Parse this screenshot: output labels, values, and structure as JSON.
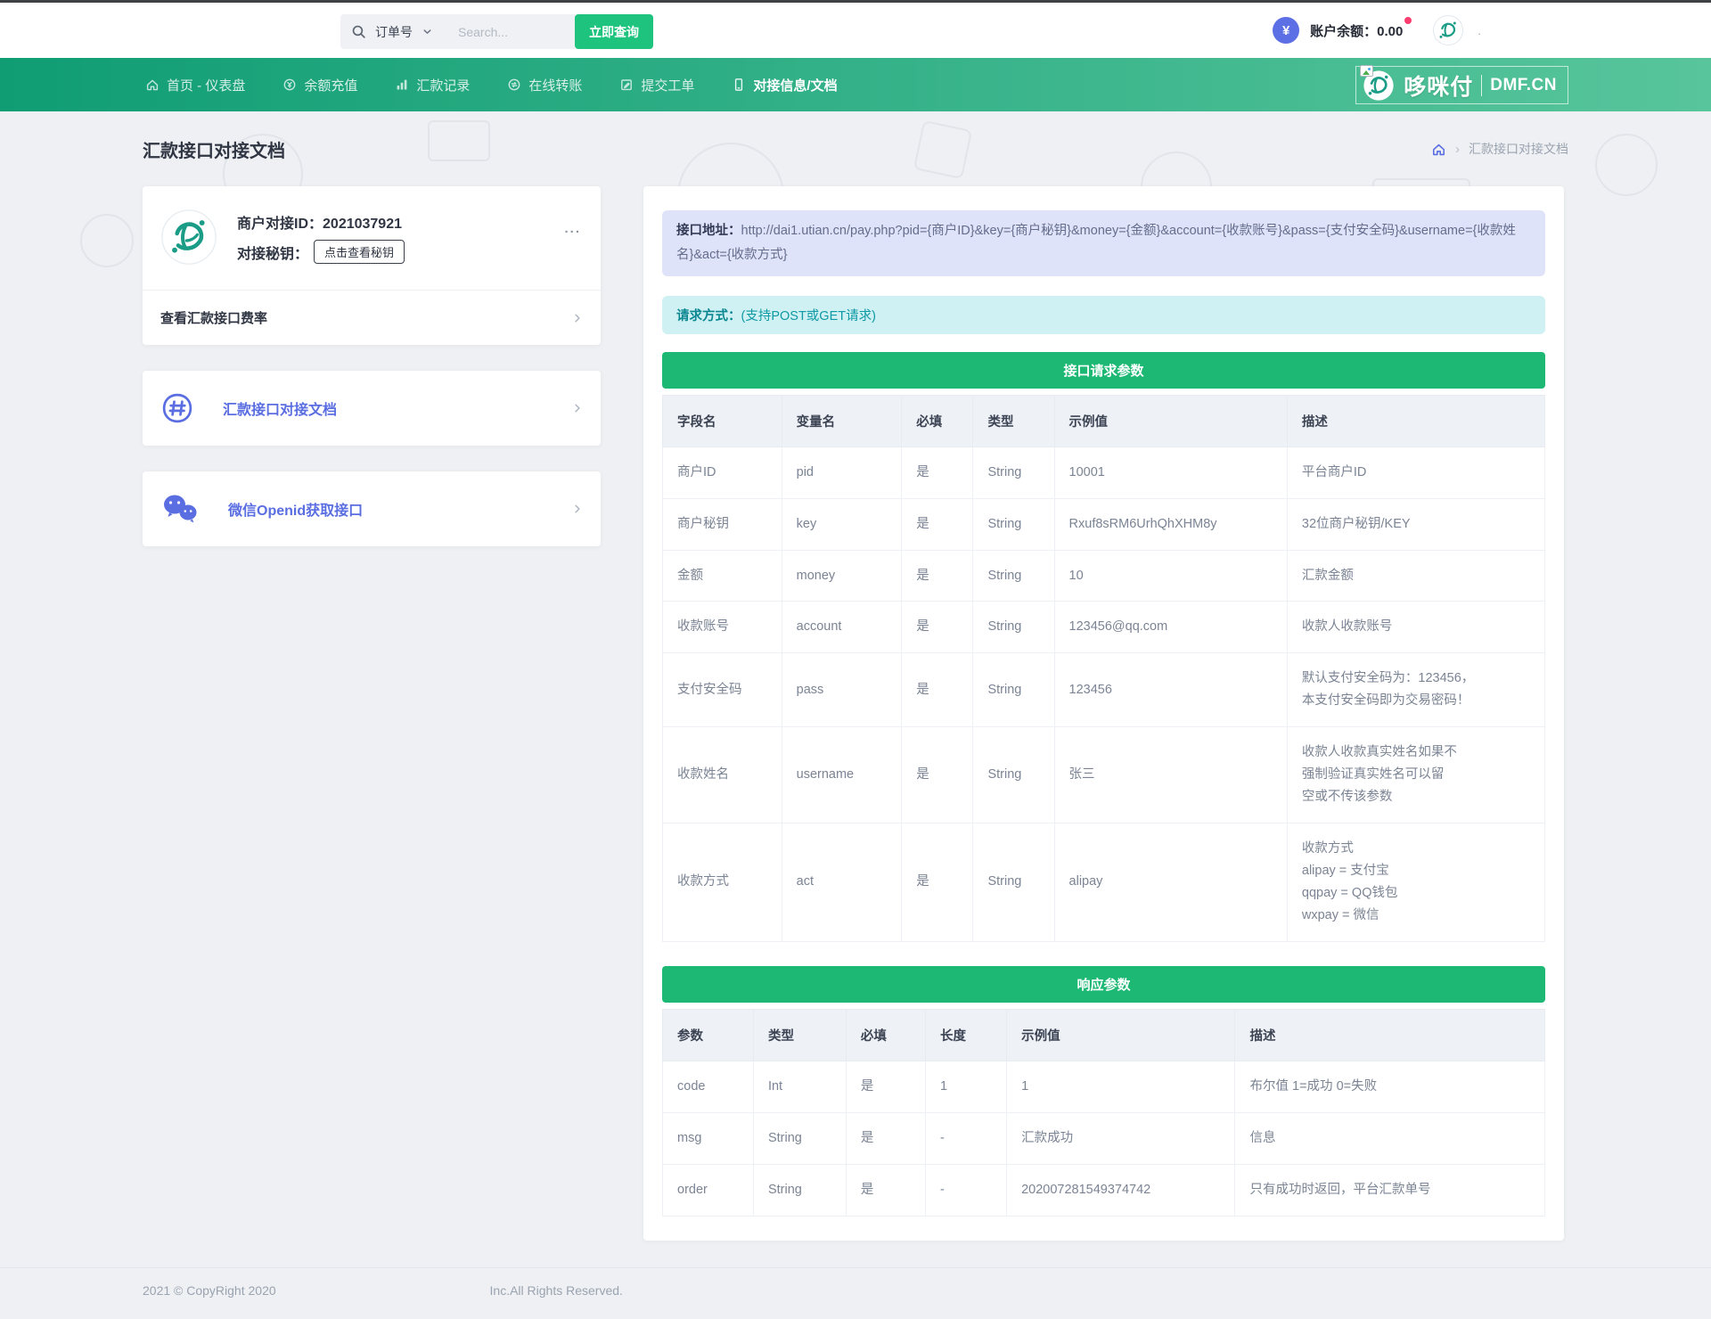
{
  "colors": {
    "accent_green": "#1db873",
    "button_green": "#1ec47d",
    "nav_gradient_start": "#109d74",
    "nav_gradient_end": "#58c59c",
    "link_blue": "#5a6ee1",
    "alert_purple_bg": "#dfe3f9",
    "alert_cyan_bg": "#cff1f3",
    "badge_blue": "#5c6fe4",
    "notif_red": "#fb3e6e"
  },
  "topbar": {
    "search": {
      "category": "订单号",
      "placeholder": "Search...",
      "button": "立即查询"
    },
    "currency_symbol": "¥",
    "balance_label": "账户余额：",
    "balance_value": "0.00"
  },
  "navbar": {
    "items": [
      {
        "label": "首页 - 仪表盘",
        "icon": "home-icon"
      },
      {
        "label": "余额充值",
        "icon": "recharge-icon"
      },
      {
        "label": "汇款记录",
        "icon": "records-icon"
      },
      {
        "label": "在线转账",
        "icon": "transfer-icon"
      },
      {
        "label": "提交工单",
        "icon": "ticket-icon"
      },
      {
        "label": "对接信息/文档",
        "icon": "docs-icon"
      }
    ],
    "brand": {
      "name": "哆咪付",
      "domain": "DMF.CN"
    }
  },
  "page": {
    "title": "汇款接口对接文档",
    "breadcrumb_current": "汇款接口对接文档"
  },
  "sidebar": {
    "merchant": {
      "id_label": "商户对接ID：",
      "id_value": "2021037921",
      "key_label": "对接秘钥：",
      "key_button": "点击查看秘钥",
      "more": "...",
      "rate_link": "查看汇款接口费率"
    },
    "links": [
      {
        "label": "汇款接口对接文档",
        "icon": "hash-icon"
      },
      {
        "label": "微信Openid获取接口",
        "icon": "wechat-icon"
      }
    ]
  },
  "main": {
    "api_alert": {
      "label": "接口地址：",
      "url": "http://dai1.utian.cn/pay.php?pid={商户ID}&key={商户秘钥}&money={金额}&account={收款账号}&pass={支付安全码}&username={收款姓名}&act={收款方式}"
    },
    "method_alert": {
      "label": "请求方式：",
      "text": "(支持POST或GET请求)"
    },
    "request_table": {
      "title": "接口请求参数",
      "headers": [
        "字段名",
        "变量名",
        "必填",
        "类型",
        "示例值",
        "描述"
      ],
      "rows": [
        [
          "商户ID",
          "pid",
          "是",
          "String",
          "10001",
          "平台商户ID"
        ],
        [
          "商户秘钥",
          "key",
          "是",
          "String",
          "Rxuf8sRM6UrhQhXHM8y",
          "32位商户秘钥/KEY"
        ],
        [
          "金额",
          "money",
          "是",
          "String",
          "10",
          "汇款金额"
        ],
        [
          "收款账号",
          "account",
          "是",
          "String",
          "123456@qq.com",
          "收款人收款账号"
        ],
        [
          "支付安全码",
          "pass",
          "是",
          "String",
          "123456",
          "默认支付安全码为：123456，\n本支付安全码即为交易密码！"
        ],
        [
          "收款姓名",
          "username",
          "是",
          "String",
          "张三",
          "收款人收款真实姓名如果不\n强制验证真实姓名可以留\n空或不传该参数"
        ],
        [
          "收款方式",
          "act",
          "是",
          "String",
          "alipay",
          "收款方式\nalipay = 支付宝\nqqpay = QQ钱包\nwxpay = 微信"
        ]
      ]
    },
    "response_table": {
      "title": "响应参数",
      "headers": [
        "参数",
        "类型",
        "必填",
        "长度",
        "示例值",
        "描述"
      ],
      "rows": [
        [
          "code",
          "Int",
          "是",
          "1",
          "1",
          "布尔值 1=成功 0=失败"
        ],
        [
          "msg",
          "String",
          "是",
          "-",
          "汇款成功",
          "信息"
        ],
        [
          "order",
          "String",
          "是",
          "-",
          "202007281549374742",
          "只有成功时返回，平台汇款单号"
        ]
      ]
    }
  },
  "footer": {
    "left": "2021 © CopyRight 2020",
    "right": "Inc.All Rights Reserved."
  }
}
